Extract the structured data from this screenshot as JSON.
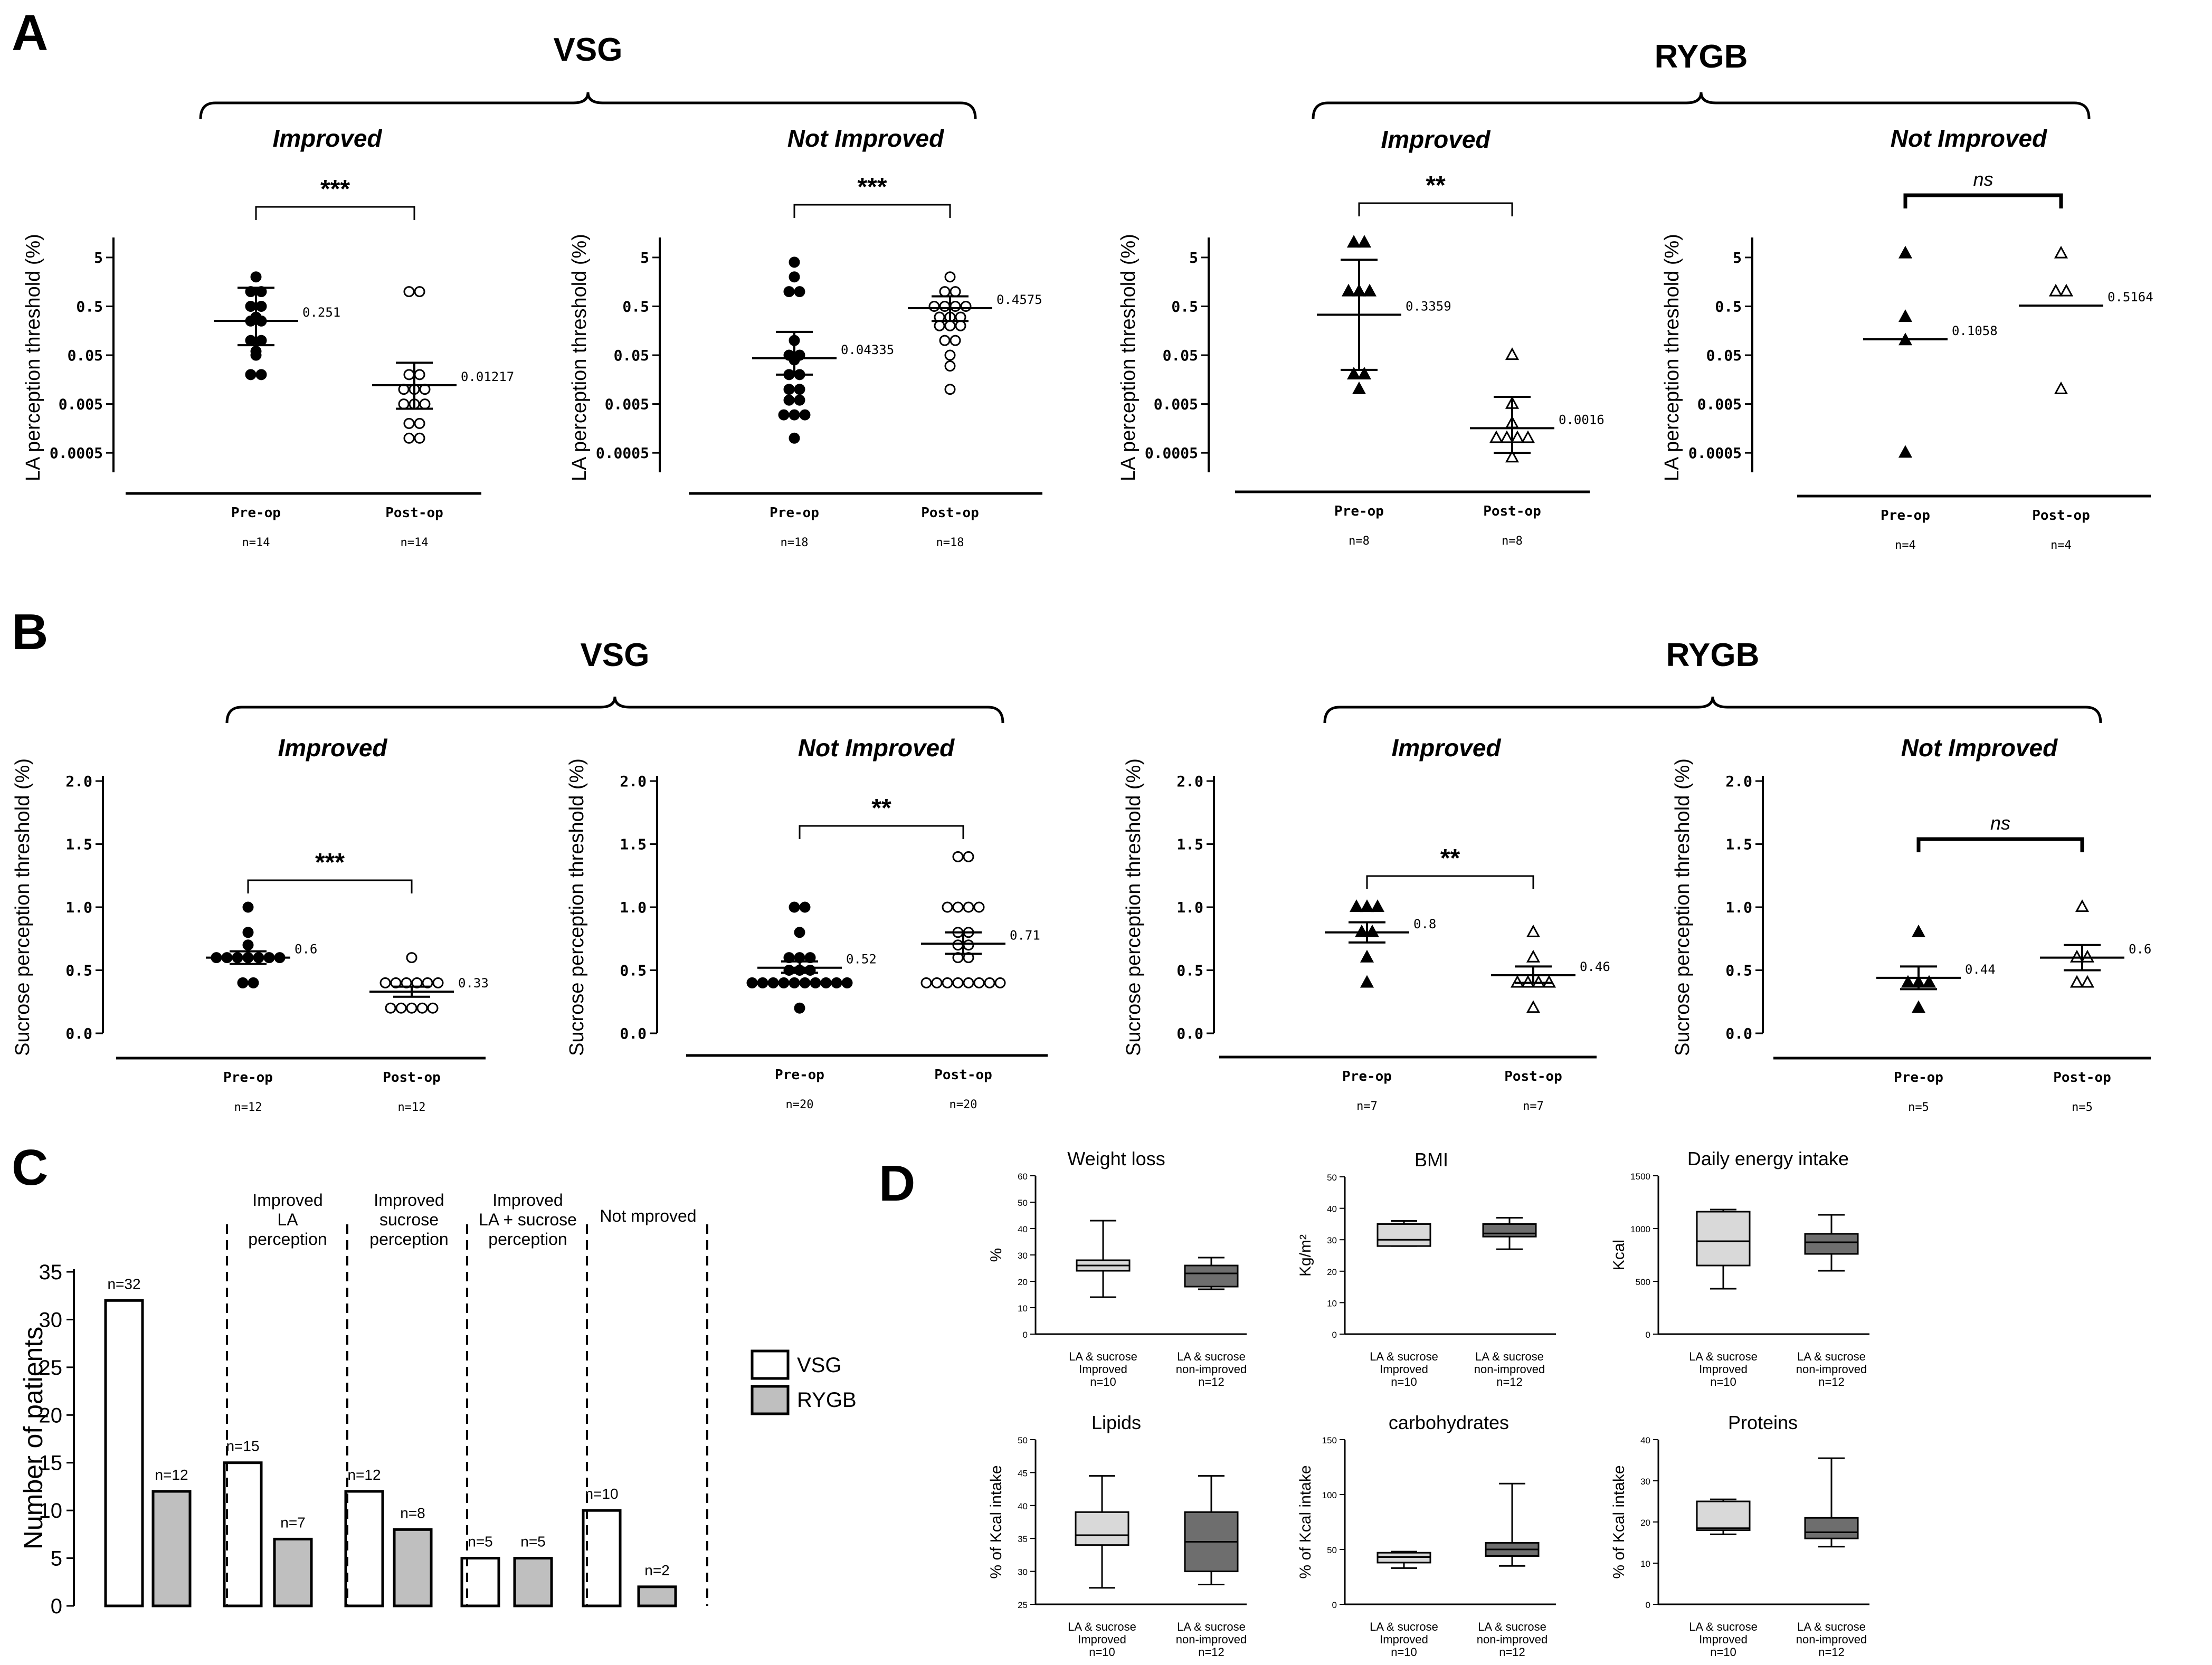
{
  "panel_letters": [
    "A",
    "B",
    "C",
    "D"
  ],
  "colors": {
    "ink": "#000000",
    "white": "#ffffff",
    "light_gray": "#d9d9d9",
    "med_gray": "#bfbfbf",
    "dark_gray": "#6e6e6e"
  },
  "panel_a": {
    "group_labels": [
      "VSG",
      "RYGB"
    ],
    "yticks": [
      "5",
      "0.5",
      "0.05",
      "0.005",
      "0.0005"
    ],
    "ylabel": "LA perception threshold (%)",
    "xcats": [
      "Pre-op",
      "Post-op"
    ],
    "charts": [
      {
        "subtitle": "Improved",
        "sig": "***",
        "n": [
          "n=14",
          "n=14"
        ],
        "median_labels": [
          "0.251",
          "0.01217"
        ],
        "marker": "dot"
      },
      {
        "subtitle": "Not Improved",
        "sig": "***",
        "n": [
          "n=18",
          "n=18"
        ],
        "median_labels": [
          "0.04335",
          "0.4575"
        ],
        "marker": "dot"
      },
      {
        "subtitle": "Improved",
        "sig": "**",
        "n": [
          "n=8",
          "n=8"
        ],
        "median_labels": [
          "0.3359",
          "0.0016"
        ],
        "marker": "triangle"
      },
      {
        "subtitle": "Not Improved",
        "sig": "ns",
        "n": [
          "n=4",
          "n=4"
        ],
        "median_labels": [
          "0.1058",
          "0.5164"
        ],
        "marker": "triangle"
      }
    ]
  },
  "panel_b": {
    "group_labels": [
      "VSG",
      "RYGB"
    ],
    "yticks": [
      "2.0",
      "1.5",
      "1.0",
      "0.5",
      "0.0"
    ],
    "ylabel": "Sucrose perception threshold (%)",
    "xcats": [
      "Pre-op",
      "Post-op"
    ],
    "charts": [
      {
        "subtitle": "Improved",
        "sig": "***",
        "n": [
          "n=12",
          "n=12"
        ],
        "median_labels": [
          "0.6",
          "0.33"
        ],
        "marker": "dot"
      },
      {
        "subtitle": "Not Improved",
        "sig": "**",
        "n": [
          "n=20",
          "n=20"
        ],
        "median_labels": [
          "0.52",
          "0.71"
        ],
        "marker": "dot"
      },
      {
        "subtitle": "Improved",
        "sig": "**",
        "n": [
          "n=7",
          "n=7"
        ],
        "median_labels": [
          "0.8",
          "0.46"
        ],
        "marker": "triangle"
      },
      {
        "subtitle": "Not Improved",
        "sig": "ns",
        "n": [
          "n=5",
          "n=5"
        ],
        "median_labels": [
          "0.44",
          "0.6"
        ],
        "marker": "triangle"
      }
    ]
  },
  "panel_c": {
    "ylabel": "Number of patients",
    "yticks": [
      "35",
      "30",
      "25",
      "20",
      "15",
      "10",
      "5",
      "0"
    ],
    "category_labels": [
      "",
      "Improved\nLA\nperception",
      "Improved\nsucrose\nperception",
      "Improved\nLA + sucrose\nperception",
      "Not mproved"
    ],
    "bar_labels": [
      [
        "n=32",
        "n=12"
      ],
      [
        "n=15",
        "n=7"
      ],
      [
        "n=12",
        "n=8"
      ],
      [
        "n=5",
        "n=5"
      ],
      [
        "n=10",
        "n=2"
      ]
    ],
    "legend": [
      "VSG",
      "RYGB"
    ]
  },
  "panel_d": {
    "charts": [
      {
        "title": "Weight loss",
        "ylabel": "%",
        "yticks": [
          "60",
          "50",
          "40",
          "30",
          "20",
          "10",
          "0"
        ],
        "xlabels": [
          "LA & sucrose\nImproved\nn=10",
          "LA & sucrose\nnon-improved\nn=12"
        ]
      },
      {
        "title": "BMI",
        "ylabel": "Kg/m²",
        "yticks": [
          "50",
          "40",
          "30",
          "20",
          "10",
          "0"
        ],
        "xlabels": [
          "LA & sucrose\nImproved\nn=10",
          "LA & sucrose\nnon-improved\nn=12"
        ]
      },
      {
        "title": "Daily energy intake",
        "ylabel": "Kcal",
        "yticks": [
          "1500",
          "1000",
          "500",
          "0"
        ],
        "xlabels": [
          "LA & sucrose\nImproved\nn=10",
          "LA & sucrose\nnon-improved\nn=12"
        ]
      },
      {
        "title": "Lipids",
        "ylabel": "% of Kcal intake",
        "yticks": [
          "50",
          "45",
          "40",
          "35",
          "30",
          "25"
        ],
        "xlabels": [
          "LA & sucrose\nImproved\nn=10",
          "LA & sucrose\nnon-improved\nn=12"
        ]
      },
      {
        "title": "carbohydrates",
        "ylabel": "% of Kcal intake",
        "yticks": [
          "150",
          "100",
          "50",
          "0"
        ],
        "xlabels": [
          "LA & sucrose\nImproved\nn=10",
          "LA & sucrose\nnon-improved\nn=12"
        ]
      },
      {
        "title": "Proteins",
        "ylabel": "% of Kcal intake",
        "yticks": [
          "40",
          "30",
          "20",
          "10",
          "0"
        ],
        "xlabels": [
          "LA & sucrose\nImproved\nn=10",
          "LA & sucrose\nnon-improved\nn=12"
        ]
      }
    ]
  },
  "chart_data": [
    {
      "panel": "A1",
      "type": "scatter",
      "scale": "log",
      "categories": [
        "Pre-op",
        "Post-op"
      ],
      "series": [
        {
          "values": [
            2,
            1,
            1,
            0.5,
            0.5,
            0.3,
            0.25,
            0.25,
            0.1,
            0.1,
            0.06,
            0.05,
            0.02,
            0.02
          ]
        },
        {
          "values": [
            1,
            1,
            0.02,
            0.02,
            0.01,
            0.01,
            0.01,
            0.005,
            0.005,
            0.005,
            0.002,
            0.002,
            0.001,
            0.001
          ]
        }
      ],
      "medians": [
        0.251,
        0.01217
      ],
      "error": [
        [
          0.08,
          1.2
        ],
        [
          0.004,
          0.035
        ]
      ],
      "ylim": [
        0.0002,
        10
      ]
    },
    {
      "panel": "A2",
      "type": "scatter",
      "scale": "log",
      "categories": [
        "Pre-op",
        "Post-op"
      ],
      "series": [
        {
          "values": [
            4,
            2,
            1,
            1,
            0.1,
            0.05,
            0.05,
            0.04,
            0.02,
            0.02,
            0.01,
            0.01,
            0.006,
            0.006,
            0.003,
            0.003,
            0.003,
            0.001
          ]
        },
        {
          "values": [
            2,
            1,
            1,
            0.5,
            0.5,
            0.5,
            0.5,
            0.3,
            0.3,
            0.3,
            0.2,
            0.2,
            0.2,
            0.1,
            0.1,
            0.05,
            0.03,
            0.01
          ]
        }
      ],
      "medians": [
        0.04335,
        0.4575
      ],
      "error": [
        [
          0.02,
          0.15
        ],
        [
          0.25,
          0.8
        ]
      ],
      "ylim": [
        0.0002,
        10
      ]
    },
    {
      "panel": "A3",
      "type": "scatter",
      "scale": "log",
      "categories": [
        "Pre-op",
        "Post-op"
      ],
      "series": [
        {
          "values": [
            10,
            10,
            1,
            1,
            1,
            0.02,
            0.02,
            0.01
          ]
        },
        {
          "values": [
            0.05,
            0.005,
            0.002,
            0.001,
            0.001,
            0.001,
            0.001,
            0.0004
          ]
        }
      ],
      "medians": [
        0.3359,
        0.0016
      ],
      "error": [
        [
          0.025,
          4.5
        ],
        [
          0.0005,
          0.007
        ]
      ],
      "ylim": [
        0.0002,
        10
      ]
    },
    {
      "panel": "A4",
      "type": "scatter",
      "scale": "log",
      "categories": [
        "Pre-op",
        "Post-op"
      ],
      "series": [
        {
          "values": [
            6,
            0.3,
            0.1,
            0.0005
          ]
        },
        {
          "values": [
            6,
            1,
            1,
            0.01
          ]
        }
      ],
      "medians": [
        0.1058,
        0.5164
      ],
      "ylim": [
        0.0002,
        10
      ]
    },
    {
      "panel": "B1",
      "type": "scatter",
      "categories": [
        "Pre-op",
        "Post-op"
      ],
      "series": [
        {
          "values": [
            1.0,
            0.8,
            0.7,
            0.6,
            0.6,
            0.6,
            0.6,
            0.6,
            0.6,
            0.6,
            0.4,
            0.4
          ]
        },
        {
          "values": [
            0.6,
            0.4,
            0.4,
            0.4,
            0.4,
            0.4,
            0.4,
            0.2,
            0.2,
            0.2,
            0.2,
            0.2
          ]
        }
      ],
      "medians": [
        0.6,
        0.33
      ],
      "error": [
        [
          0.55,
          0.65
        ],
        [
          0.29,
          0.37
        ]
      ],
      "ylim": [
        0,
        2.0
      ]
    },
    {
      "panel": "B2",
      "type": "scatter",
      "categories": [
        "Pre-op",
        "Post-op"
      ],
      "series": [
        {
          "values": [
            1.0,
            1.0,
            0.8,
            0.6,
            0.6,
            0.6,
            0.5,
            0.5,
            0.5,
            0.4,
            0.4,
            0.4,
            0.4,
            0.4,
            0.4,
            0.4,
            0.4,
            0.4,
            0.4,
            0.2
          ]
        },
        {
          "values": [
            1.4,
            1.4,
            1.0,
            1.0,
            1.0,
            1.0,
            0.8,
            0.8,
            0.7,
            0.7,
            0.6,
            0.6,
            0.4,
            0.4,
            0.4,
            0.4,
            0.4,
            0.4,
            0.4,
            0.4
          ]
        }
      ],
      "medians": [
        0.52,
        0.71
      ],
      "error": [
        [
          0.48,
          0.57
        ],
        [
          0.63,
          0.8
        ]
      ],
      "ylim": [
        0,
        2.0
      ]
    },
    {
      "panel": "B3",
      "type": "scatter",
      "categories": [
        "Pre-op",
        "Post-op"
      ],
      "series": [
        {
          "values": [
            1.0,
            1.0,
            1.0,
            0.8,
            0.8,
            0.6,
            0.4
          ]
        },
        {
          "values": [
            0.8,
            0.6,
            0.4,
            0.4,
            0.4,
            0.4,
            0.2
          ]
        }
      ],
      "medians": [
        0.8,
        0.46
      ],
      "error": [
        [
          0.72,
          0.88
        ],
        [
          0.4,
          0.53
        ]
      ],
      "ylim": [
        0,
        2.0
      ]
    },
    {
      "panel": "B4",
      "type": "scatter",
      "categories": [
        "Pre-op",
        "Post-op"
      ],
      "series": [
        {
          "values": [
            0.8,
            0.4,
            0.4,
            0.4,
            0.2
          ]
        },
        {
          "values": [
            1.0,
            0.6,
            0.6,
            0.4,
            0.4
          ]
        }
      ],
      "medians": [
        0.44,
        0.6
      ],
      "error": [
        [
          0.35,
          0.53
        ],
        [
          0.5,
          0.7
        ]
      ],
      "ylim": [
        0,
        2.0
      ]
    },
    {
      "panel": "C",
      "type": "bar",
      "categories": [
        "",
        "Improved LA perception",
        "Improved sucrose perception",
        "Improved LA + sucrose perception",
        "Not mproved"
      ],
      "series": [
        {
          "name": "VSG",
          "values": [
            32,
            15,
            12,
            5,
            10
          ]
        },
        {
          "name": "RYGB",
          "values": [
            12,
            7,
            8,
            5,
            2
          ]
        }
      ],
      "ylim": [
        0,
        35
      ]
    },
    {
      "panel": "D1",
      "type": "box",
      "ylim": [
        0,
        60
      ],
      "boxes": [
        {
          "min": 14,
          "q1": 24,
          "median": 26,
          "q3": 28,
          "max": 43
        },
        {
          "min": 17,
          "q1": 18,
          "median": 23,
          "q3": 26,
          "max": 29
        }
      ]
    },
    {
      "panel": "D2",
      "type": "box",
      "ylim": [
        0,
        50
      ],
      "boxes": [
        {
          "min": 28,
          "q1": 28,
          "median": 30,
          "q3": 35,
          "max": 36
        },
        {
          "min": 27,
          "q1": 31,
          "median": 32,
          "q3": 35,
          "max": 37
        }
      ]
    },
    {
      "panel": "D3",
      "type": "box",
      "ylim": [
        0,
        1500
      ],
      "boxes": [
        {
          "min": 430,
          "q1": 650,
          "median": 880,
          "q3": 1160,
          "max": 1180
        },
        {
          "min": 600,
          "q1": 760,
          "median": 870,
          "q3": 950,
          "max": 1130
        }
      ]
    },
    {
      "panel": "D4",
      "type": "box",
      "ylim": [
        25,
        50
      ],
      "boxes": [
        {
          "min": 27.5,
          "q1": 34,
          "median": 35.5,
          "q3": 39,
          "max": 44.5
        },
        {
          "min": 28,
          "q1": 30,
          "median": 34.5,
          "q3": 39,
          "max": 44.5
        }
      ]
    },
    {
      "panel": "D5",
      "type": "box",
      "ylim": [
        0,
        150
      ],
      "boxes": [
        {
          "min": 33,
          "q1": 38,
          "median": 43,
          "q3": 47,
          "max": 48
        },
        {
          "min": 35,
          "q1": 44,
          "median": 50,
          "q3": 56,
          "max": 110
        }
      ]
    },
    {
      "panel": "D6",
      "type": "box",
      "ylim": [
        0,
        40
      ],
      "boxes": [
        {
          "min": 17,
          "q1": 18,
          "median": 18.5,
          "q3": 25,
          "max": 25.5
        },
        {
          "min": 14,
          "q1": 16,
          "median": 17.5,
          "q3": 21,
          "max": 35.5
        }
      ]
    }
  ]
}
